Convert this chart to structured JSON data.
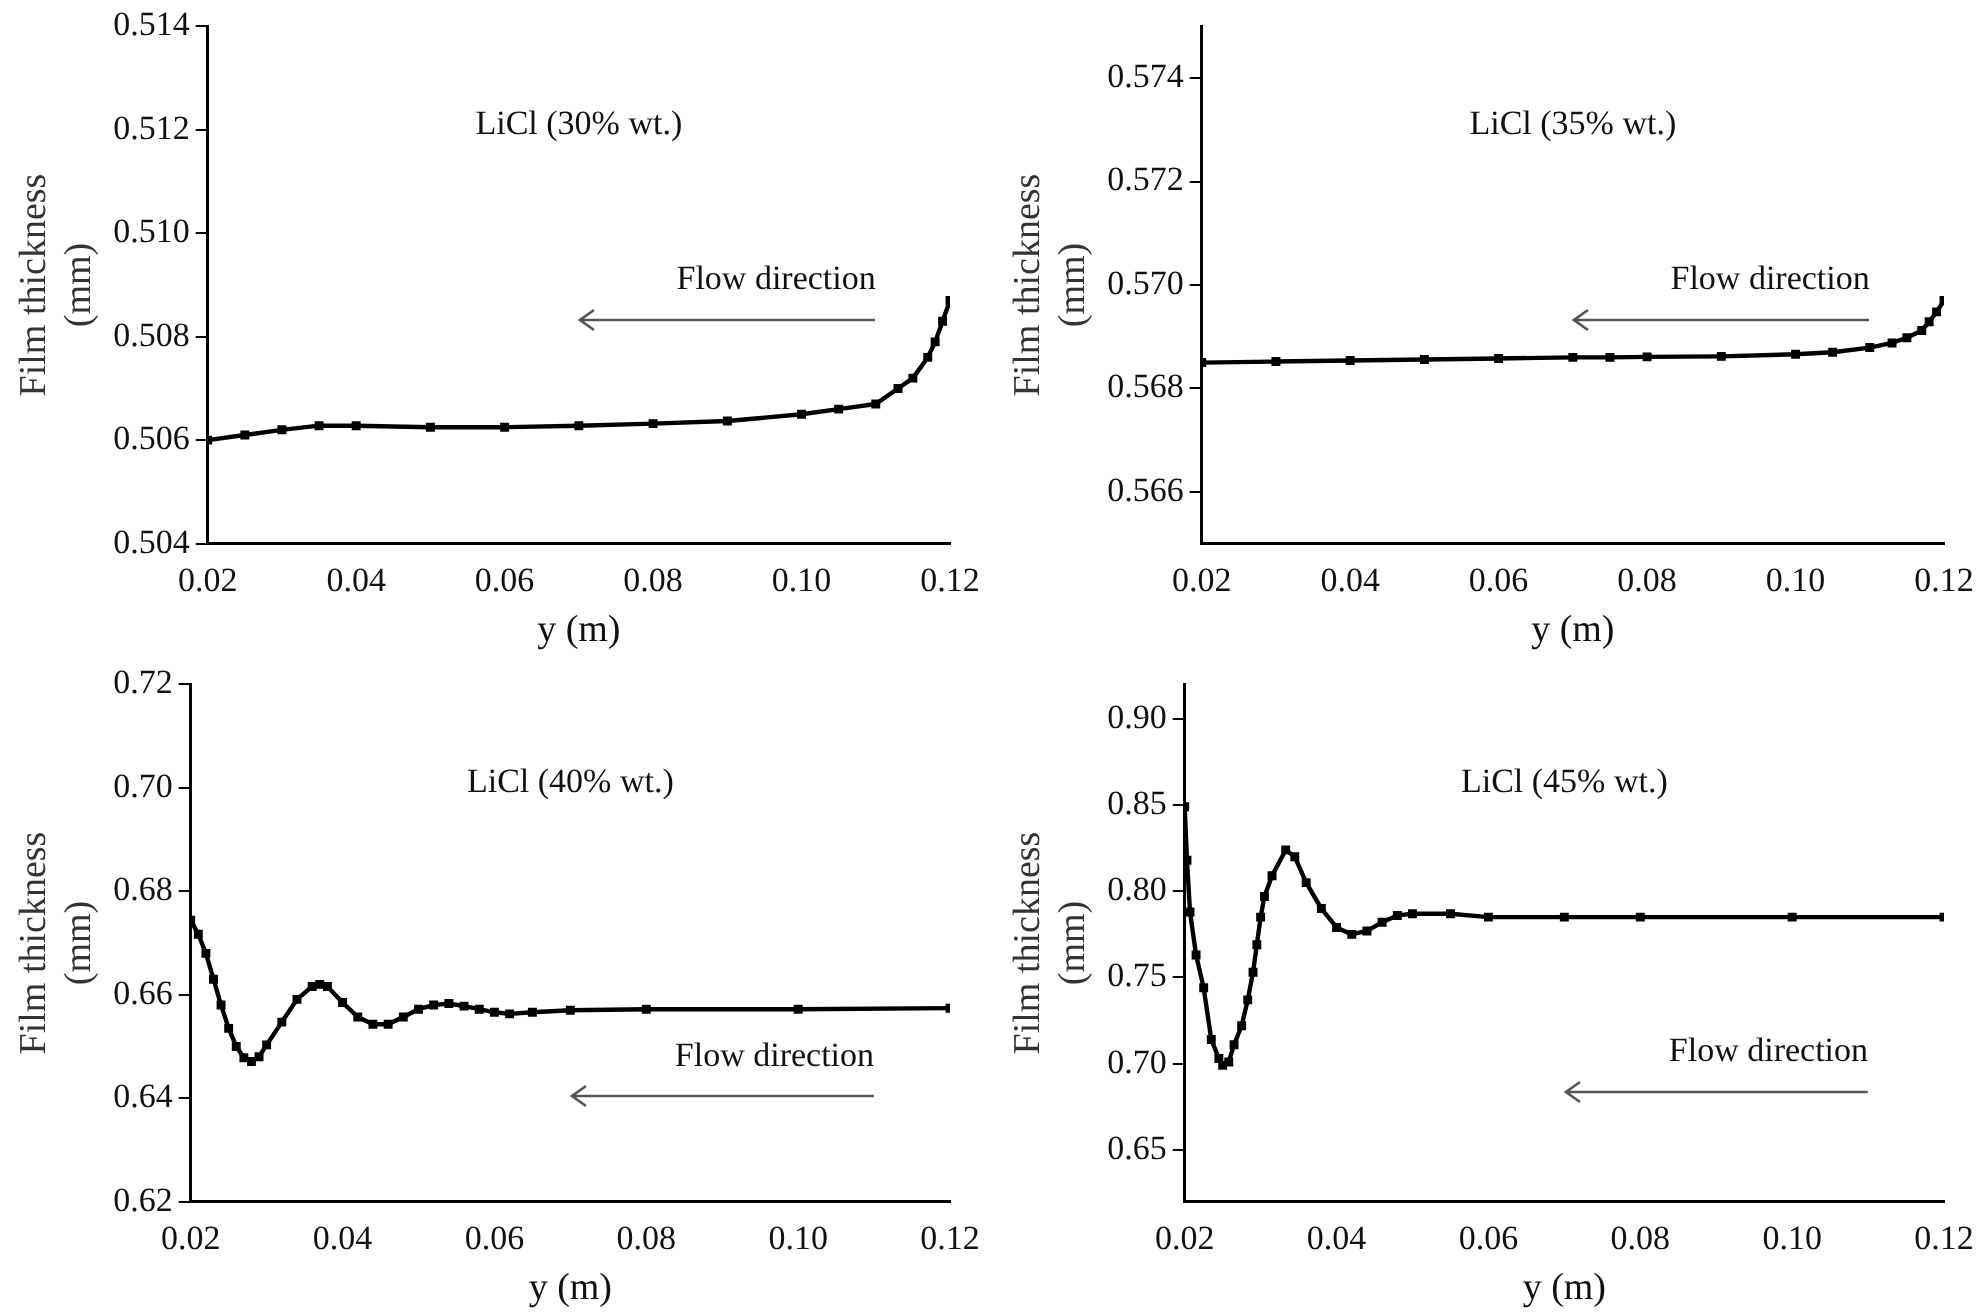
{
  "chart_data": [
    {
      "type": "line",
      "ylabel": "Film thickness (mm)",
      "xlabel": "y (m)",
      "annotations": [
        "LiCl (30% wt.)",
        "Flow direction"
      ],
      "marker": "square",
      "grid": false,
      "legend": false,
      "xlim": [
        0.02,
        0.12
      ],
      "xticks": [
        {
          "value": 0.02,
          "label": "0.02"
        },
        {
          "value": 0.04,
          "label": "0.04"
        },
        {
          "value": 0.06,
          "label": "0.06"
        },
        {
          "value": 0.08,
          "label": "0.08"
        },
        {
          "value": 0.1,
          "label": "0.10"
        },
        {
          "value": 0.12,
          "label": "0.12"
        }
      ],
      "ylim": [
        0.504,
        0.514
      ],
      "yticks": [
        {
          "value": 0.504,
          "label": "0.504"
        },
        {
          "value": 0.506,
          "label": "0.506"
        },
        {
          "value": 0.508,
          "label": "0.508"
        },
        {
          "value": 0.51,
          "label": "0.510"
        },
        {
          "value": 0.512,
          "label": "0.512"
        },
        {
          "value": 0.514,
          "label": "0.514"
        }
      ],
      "series": [
        {
          "color": "#000000",
          "x": [
            0.02,
            0.025,
            0.03,
            0.035,
            0.04,
            0.05,
            0.06,
            0.07,
            0.08,
            0.09,
            0.1,
            0.105,
            0.11,
            0.113,
            0.115,
            0.117,
            0.118,
            0.119,
            0.12
          ],
          "values": [
            0.506,
            0.5061,
            0.5062,
            0.50628,
            0.50628,
            0.50625,
            0.50625,
            0.50628,
            0.50632,
            0.50637,
            0.5065,
            0.5066,
            0.5067,
            0.507,
            0.5072,
            0.5076,
            0.5079,
            0.5083,
            0.5087
          ]
        }
      ]
    },
    {
      "type": "line",
      "ylabel": "Film thickness (mm)",
      "xlabel": "y (m)",
      "annotations": [
        "LiCl (35% wt.)",
        "Flow direction"
      ],
      "marker": "square",
      "grid": false,
      "legend": false,
      "xlim": [
        0.02,
        0.12
      ],
      "xticks": [
        {
          "value": 0.02,
          "label": "0.02"
        },
        {
          "value": 0.04,
          "label": "0.04"
        },
        {
          "value": 0.06,
          "label": "0.06"
        },
        {
          "value": 0.08,
          "label": "0.08"
        },
        {
          "value": 0.1,
          "label": "0.10"
        },
        {
          "value": 0.12,
          "label": "0.12"
        }
      ],
      "ylim": [
        0.565,
        0.575
      ],
      "yticks": [
        0.566,
        0.568,
        {
          "value": 0.57,
          "label": "0.570"
        },
        0.572,
        0.574
      ],
      "series": [
        {
          "color": "#000000",
          "x": [
            0.02,
            0.03,
            0.04,
            0.05,
            0.06,
            0.07,
            0.075,
            0.08,
            0.09,
            0.1,
            0.105,
            0.11,
            0.113,
            0.115,
            0.117,
            0.118,
            0.119,
            0.12
          ],
          "values": [
            0.5685,
            0.56852,
            0.56854,
            0.56856,
            0.56858,
            0.5686,
            0.5686,
            0.56861,
            0.56862,
            0.56866,
            0.5687,
            0.56879,
            0.56888,
            0.56898,
            0.56912,
            0.56929,
            0.56948,
            0.5697
          ]
        }
      ]
    },
    {
      "type": "line",
      "ylabel": "Film thickness (mm)",
      "xlabel": "y (m)",
      "annotations": [
        "LiCl (40% wt.)",
        "Flow direction"
      ],
      "marker": "square",
      "grid": false,
      "legend": false,
      "xlim": [
        0.02,
        0.12
      ],
      "xticks": [
        {
          "value": 0.02,
          "label": "0.02"
        },
        {
          "value": 0.04,
          "label": "0.04"
        },
        {
          "value": 0.06,
          "label": "0.06"
        },
        {
          "value": 0.08,
          "label": "0.08"
        },
        {
          "value": 0.1,
          "label": "0.10"
        },
        {
          "value": 0.12,
          "label": "0.12"
        }
      ],
      "ylim": [
        0.62,
        0.72
      ],
      "yticks": [
        0.62,
        0.64,
        0.66,
        0.68,
        {
          "value": 0.7,
          "label": "0.70"
        },
        0.72
      ],
      "series": [
        {
          "color": "#000000",
          "x": [
            0.02,
            0.021,
            0.022,
            0.023,
            0.024,
            0.025,
            0.026,
            0.027,
            0.028,
            0.029,
            0.03,
            0.032,
            0.034,
            0.036,
            0.037,
            0.038,
            0.04,
            0.042,
            0.044,
            0.046,
            0.048,
            0.05,
            0.052,
            0.054,
            0.056,
            0.058,
            0.06,
            0.062,
            0.065,
            0.07,
            0.08,
            0.1,
            0.12
          ],
          "values": [
            0.6744,
            0.6717,
            0.668,
            0.663,
            0.658,
            0.6535,
            0.65,
            0.6478,
            0.6471,
            0.648,
            0.6503,
            0.6547,
            0.6591,
            0.6616,
            0.662,
            0.6616,
            0.6585,
            0.6557,
            0.6543,
            0.6543,
            0.6557,
            0.6572,
            0.658,
            0.6583,
            0.6578,
            0.6572,
            0.6566,
            0.6563,
            0.6566,
            0.657,
            0.6572,
            0.6572,
            0.6574
          ]
        }
      ]
    },
    {
      "type": "line",
      "ylabel": "Film thickness (mm)",
      "xlabel": "y (m)",
      "annotations": [
        "LiCl (45% wt.)",
        "Flow direction"
      ],
      "marker": "square",
      "grid": false,
      "legend": false,
      "xlim": [
        0.02,
        0.12
      ],
      "xticks": [
        {
          "value": 0.02,
          "label": "0.02"
        },
        {
          "value": 0.04,
          "label": "0.04"
        },
        {
          "value": 0.06,
          "label": "0.06"
        },
        {
          "value": 0.08,
          "label": "0.08"
        },
        {
          "value": 0.1,
          "label": "0.10"
        },
        {
          "value": 0.12,
          "label": "0.12"
        }
      ],
      "ylim": [
        0.62,
        0.92
      ],
      "yticks": [
        0.65,
        {
          "value": 0.7,
          "label": "0.70"
        },
        0.75,
        {
          "value": 0.8,
          "label": "0.80"
        },
        0.85,
        {
          "value": 0.9,
          "label": "0.90"
        }
      ],
      "series": [
        {
          "color": "#000000",
          "x": [
            0.02,
            0.0203,
            0.0207,
            0.0215,
            0.0225,
            0.0235,
            0.0245,
            0.025,
            0.0258,
            0.0265,
            0.0275,
            0.0283,
            0.029,
            0.0295,
            0.03,
            0.0305,
            0.0315,
            0.0333,
            0.0345,
            0.036,
            0.038,
            0.04,
            0.042,
            0.044,
            0.046,
            0.048,
            0.05,
            0.055,
            0.06,
            0.07,
            0.08,
            0.1,
            0.12
          ],
          "values": [
            0.849,
            0.818,
            0.788,
            0.763,
            0.744,
            0.714,
            0.703,
            0.699,
            0.701,
            0.711,
            0.722,
            0.737,
            0.753,
            0.769,
            0.785,
            0.797,
            0.809,
            0.824,
            0.82,
            0.805,
            0.79,
            0.779,
            0.775,
            0.777,
            0.782,
            0.786,
            0.787,
            0.787,
            0.785,
            0.785,
            0.785,
            0.785,
            0.785
          ]
        }
      ]
    }
  ]
}
